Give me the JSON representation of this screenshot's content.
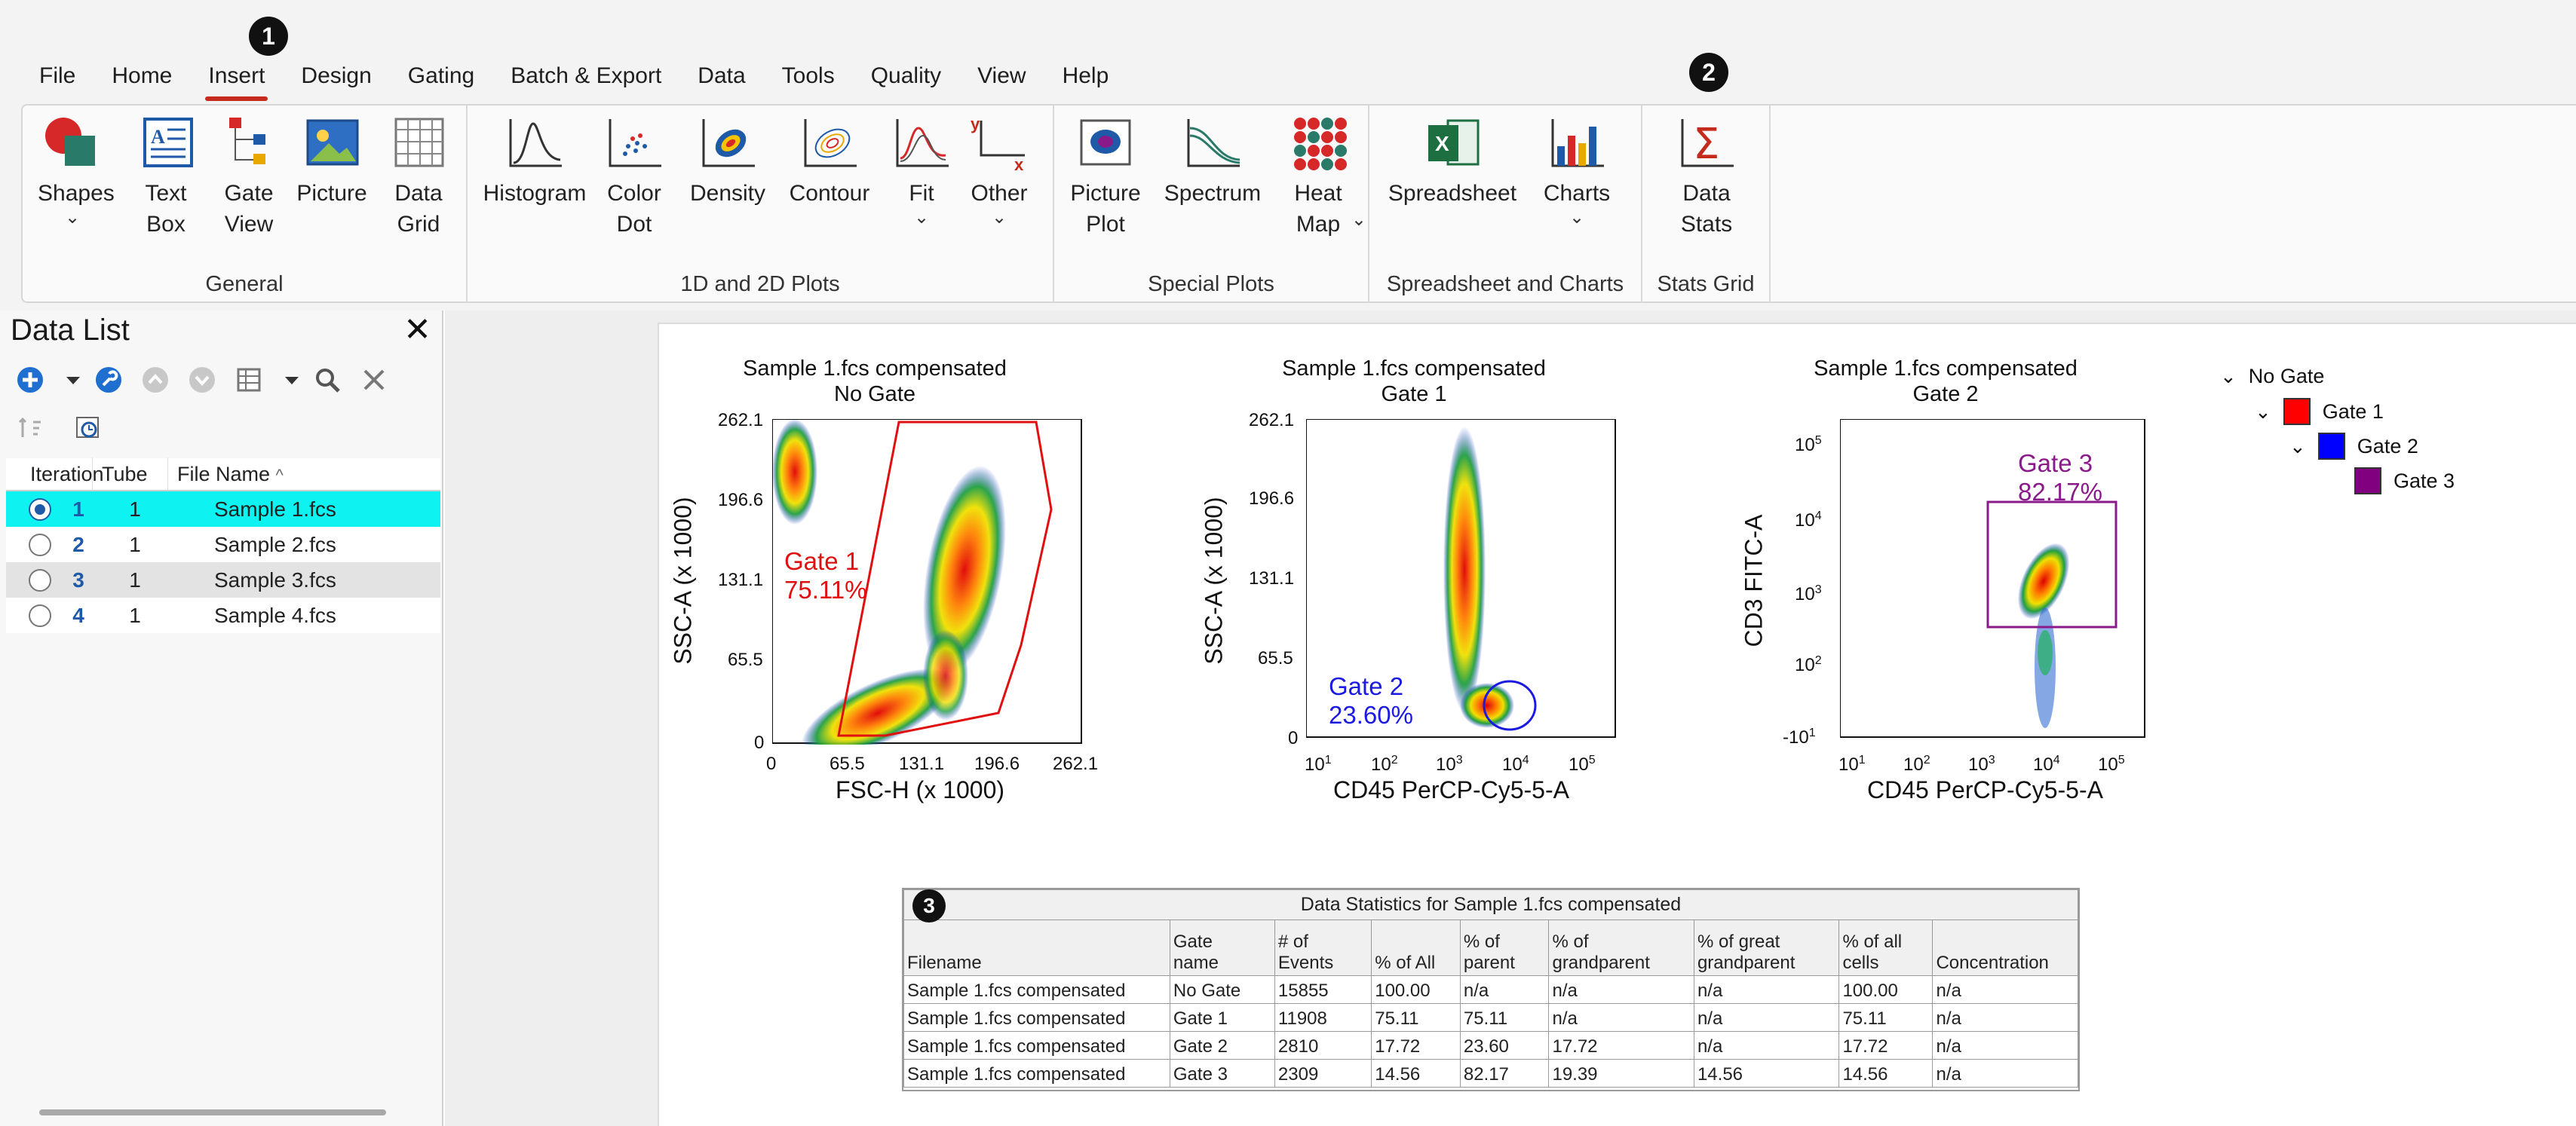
{
  "menu": {
    "items": [
      "File",
      "Home",
      "Insert",
      "Design",
      "Gating",
      "Batch & Export",
      "Data",
      "Tools",
      "Quality",
      "View",
      "Help"
    ],
    "active": "Insert"
  },
  "callouts": [
    "1",
    "2",
    "3"
  ],
  "ribbon": {
    "general": {
      "label": "General",
      "buttons": [
        "Shapes",
        "Text\nBox",
        "Gate\nView",
        "Picture",
        "Data\nGrid"
      ]
    },
    "plots": {
      "label": "1D and 2D Plots",
      "buttons": [
        "Histogram",
        "Color\nDot",
        "Density",
        "Contour",
        "Fit",
        "Other"
      ]
    },
    "special": {
      "label": "Special Plots",
      "buttons": [
        "Picture\nPlot",
        "Spectrum",
        "Heat\nMap"
      ]
    },
    "spreadsheet": {
      "label": "Spreadsheet and Charts",
      "buttons": [
        "Spreadsheet",
        "Charts"
      ]
    },
    "stats": {
      "label": "Stats Grid",
      "buttons": [
        "Data\nStats"
      ]
    },
    "other_glyph_y": "y",
    "other_glyph_x": "x",
    "accent": "#c42b1c"
  },
  "data_list": {
    "title": "Data List",
    "close": "✕",
    "columns": [
      "Iteration",
      "Tube",
      "File Name"
    ],
    "sort_indicator": "^",
    "rows": [
      {
        "iteration": "1",
        "tube": "1",
        "file": "Sample 1.fcs",
        "selected": true
      },
      {
        "iteration": "2",
        "tube": "1",
        "file": "Sample 2.fcs",
        "selected": false
      },
      {
        "iteration": "3",
        "tube": "1",
        "file": "Sample 3.fcs",
        "selected": false
      },
      {
        "iteration": "4",
        "tube": "1",
        "file": "Sample 4.fcs",
        "selected": false
      }
    ],
    "selected_color": "#0ff2f2"
  },
  "plots": [
    {
      "title": "Sample 1.fcs compensated",
      "subtitle": "No Gate",
      "xlabel": "FSC-H (x 1000)",
      "ylabel": "SSC-A (x 1000)",
      "xticks": [
        "0",
        "65.5",
        "131.1",
        "196.6",
        "262.1"
      ],
      "yticks": [
        "262.1",
        "196.6",
        "131.1",
        "65.5",
        "0"
      ],
      "gate": {
        "name": "Gate 1",
        "pct": "75.11%",
        "color": "#e01010"
      }
    },
    {
      "title": "Sample 1.fcs compensated",
      "subtitle": "Gate 1",
      "xlabel": "CD45 PerCP-Cy5-5-A",
      "ylabel": "SSC-A (x 1000)",
      "xticks": [
        "10",
        "10",
        "10",
        "10",
        "10"
      ],
      "xexp": [
        "1",
        "2",
        "3",
        "4",
        "5"
      ],
      "yticks": [
        "262.1",
        "196.6",
        "131.1",
        "65.5",
        "0"
      ],
      "gate": {
        "name": "Gate 2",
        "pct": "23.60%",
        "color": "#1a1ae0"
      }
    },
    {
      "title": "Sample 1.fcs compensated",
      "subtitle": "Gate 2",
      "xlabel": "CD45 PerCP-Cy5-5-A",
      "ylabel": "CD3 FITC-A",
      "xticks": [
        "10",
        "10",
        "10",
        "10",
        "10"
      ],
      "xexp": [
        "1",
        "2",
        "3",
        "4",
        "5"
      ],
      "yticks": [
        "10",
        "10",
        "10",
        "10",
        "-10"
      ],
      "yexp": [
        "5",
        "4",
        "3",
        "2",
        "1"
      ],
      "gate": {
        "name": "Gate 3",
        "pct": "82.17%",
        "color": "#8a1a8a"
      }
    }
  ],
  "gate_tree": [
    {
      "label": "No Gate",
      "color": ""
    },
    {
      "label": "Gate 1",
      "color": "#ff0000"
    },
    {
      "label": "Gate 2",
      "color": "#0000ff"
    },
    {
      "label": "Gate 3",
      "color": "#800080"
    }
  ],
  "stats": {
    "title": "Data Statistics for Sample 1.fcs compensated",
    "headers": [
      "Filename",
      "Gate\nname",
      "# of\nEvents",
      "% of All",
      "% of\nparent",
      "% of\ngrandparent",
      "% of great\ngrandparent",
      "% of all\ncells",
      "Concentration"
    ],
    "rows": [
      [
        "Sample 1.fcs compensated",
        "No Gate",
        "15855",
        "100.00",
        "n/a",
        "n/a",
        "n/a",
        "100.00",
        "n/a"
      ],
      [
        "Sample 1.fcs compensated",
        "Gate 1",
        "11908",
        "75.11",
        "75.11",
        "n/a",
        "n/a",
        "75.11",
        "n/a"
      ],
      [
        "Sample 1.fcs compensated",
        "Gate 2",
        "2810",
        "17.72",
        "23.60",
        "17.72",
        "n/a",
        "17.72",
        "n/a"
      ],
      [
        "Sample 1.fcs compensated",
        "Gate 3",
        "2309",
        "14.56",
        "82.17",
        "19.39",
        "14.56",
        "14.56",
        "n/a"
      ]
    ]
  }
}
